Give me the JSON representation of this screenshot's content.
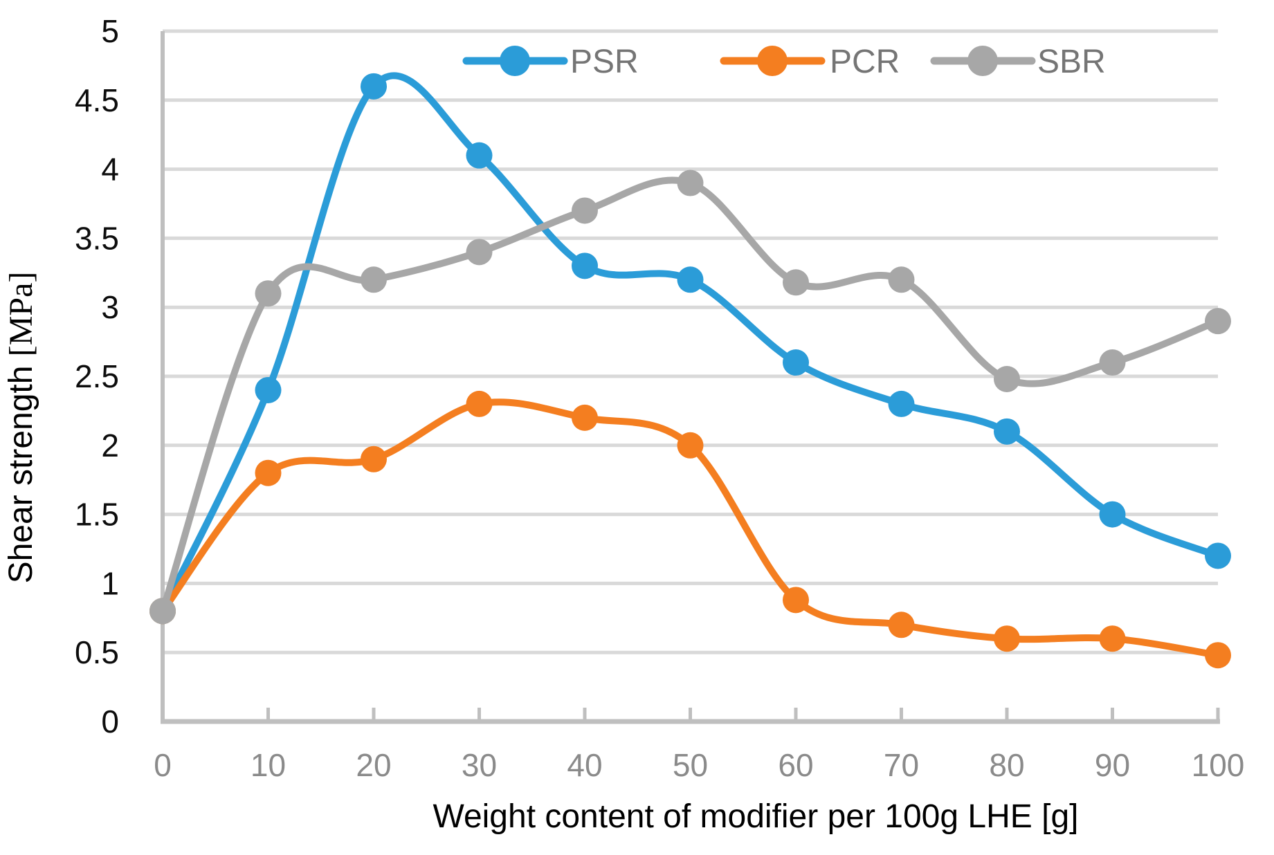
{
  "chart_data": {
    "type": "line",
    "title": "",
    "xlabel": "Weight content of modifier per 100g LHE [g]",
    "ylabel": "Shear strength ",
    "ylabel_units": "[MPa]",
    "x": [
      0,
      10,
      20,
      30,
      40,
      50,
      60,
      70,
      80,
      90,
      100
    ],
    "x_tick_labels": [
      "0",
      "10",
      "20",
      "30",
      "40",
      "50",
      "60",
      "70",
      "80",
      "90",
      "100"
    ],
    "y_ticks": [
      0,
      0.5,
      1,
      1.5,
      2,
      2.5,
      3,
      3.5,
      4,
      4.5,
      5
    ],
    "y_tick_labels": [
      "0",
      "0.5",
      "1",
      "1.5",
      "2",
      "2.5",
      "3",
      "3.5",
      "4",
      "4.5",
      "5"
    ],
    "xlim": [
      0,
      100
    ],
    "ylim": [
      0,
      5
    ],
    "grid": true,
    "line_style": "smooth",
    "marker": "circle",
    "legend_position": "top-inside",
    "series": [
      {
        "name": "PSR",
        "color": "#2b9cd8",
        "values": [
          0.8,
          2.4,
          4.6,
          4.1,
          3.3,
          3.2,
          2.6,
          2.3,
          2.1,
          1.5,
          1.2
        ]
      },
      {
        "name": "PCR",
        "color": "#f47e20",
        "values": [
          0.8,
          1.8,
          1.9,
          2.3,
          2.2,
          2.0,
          0.88,
          0.7,
          0.6,
          0.6,
          0.48
        ]
      },
      {
        "name": "SBR",
        "color": "#a7a7a7",
        "values": [
          0.8,
          3.1,
          3.2,
          3.4,
          3.7,
          3.9,
          3.18,
          3.2,
          2.48,
          2.6,
          2.9
        ]
      }
    ]
  },
  "style_colors": {
    "gridline": "#d9d9d9",
    "axis_line": "#bfbfbf",
    "x_tick_text": "#8a8a8a",
    "y_tick_text": "#0d0d0d",
    "axis_title_text": "#000000",
    "legend_text": "#757575",
    "background": "#ffffff"
  }
}
